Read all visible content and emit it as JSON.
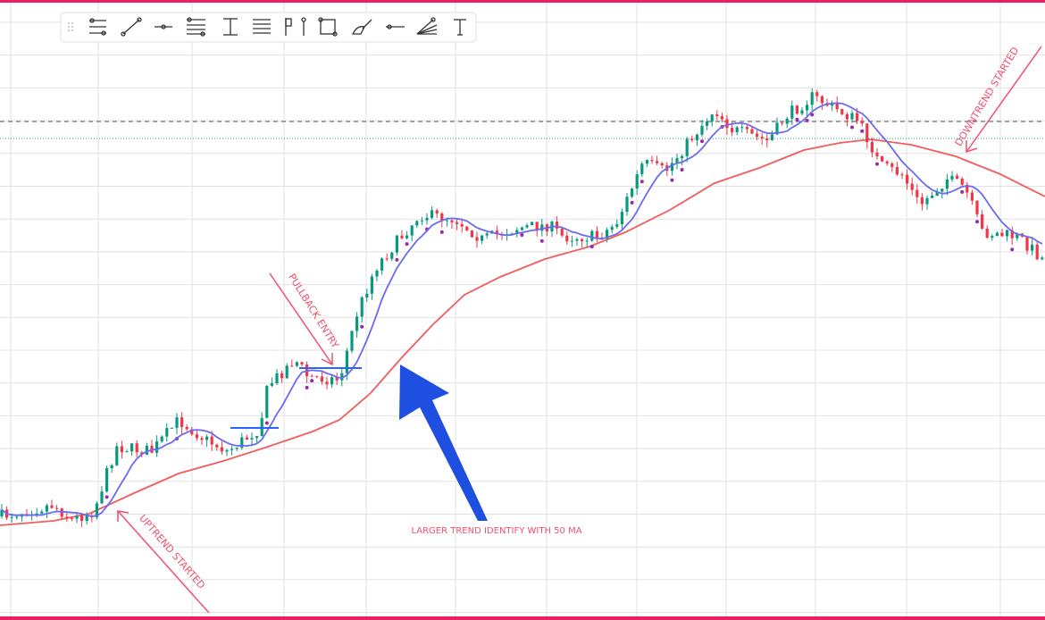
{
  "annotations": {
    "uptrend": "UPTREND STARTED",
    "pullback": "PULLBACK ENTRY",
    "larger_trend": "LARGER TREND IDENTIFY WITH 50 MA",
    "downtrend": "DOWNTREND STARTED"
  }
}
